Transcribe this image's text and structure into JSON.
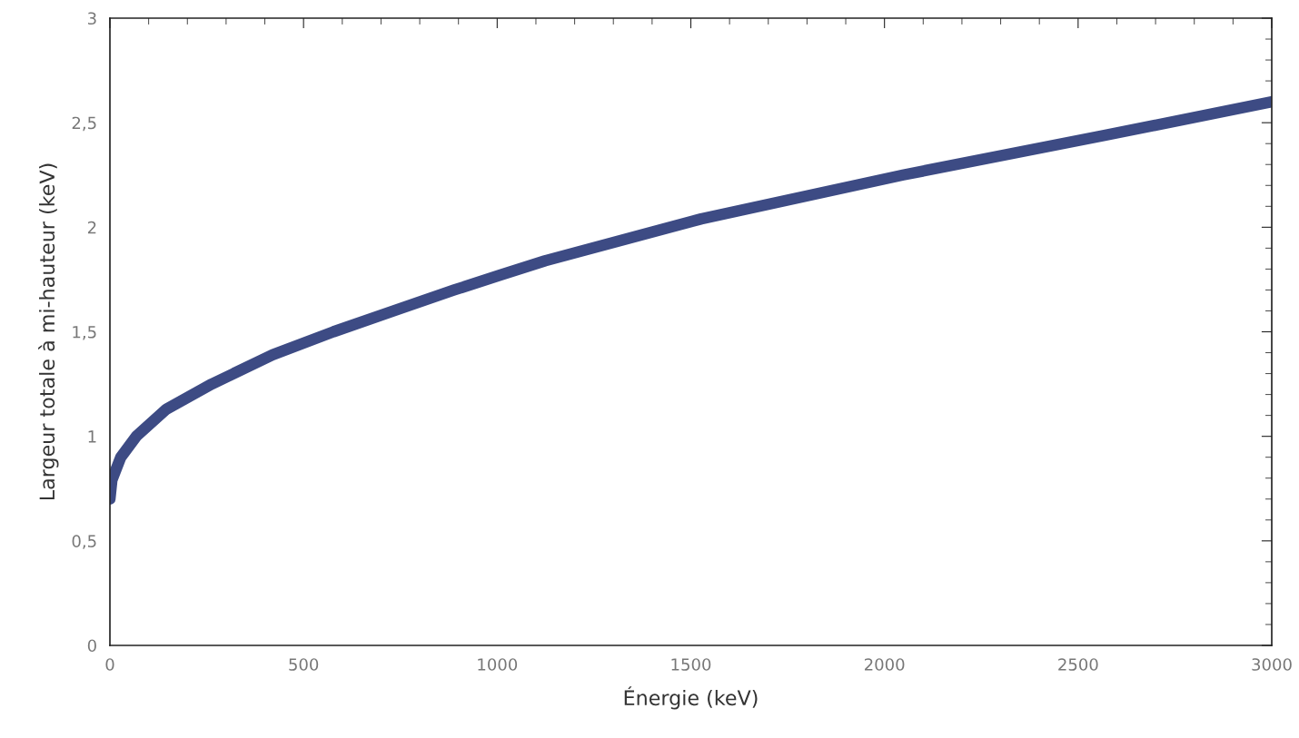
{
  "chart_data": {
    "type": "line",
    "xlabel": "Énergie (keV)",
    "ylabel": "Largeur totale à mi-hauteur (keV)",
    "x": [
      0,
      5,
      28,
      68,
      146,
      263,
      420,
      577,
      733,
      889,
      1006,
      1124,
      1527,
      2048,
      2571,
      3000
    ],
    "series": [
      {
        "color": "#3d4b84",
        "values": [
          0.7,
          0.79,
          0.9,
          1.0,
          1.13,
          1.25,
          1.39,
          1.5,
          1.6,
          1.7,
          1.77,
          1.84,
          2.04,
          2.25,
          2.44,
          2.6
        ]
      }
    ],
    "xlim": [
      0,
      3000
    ],
    "xticks": [
      0,
      {
        "value": 100,
        "label": null
      },
      {
        "value": 200,
        "label": null
      },
      {
        "value": 300,
        "label": null
      },
      {
        "value": 400,
        "label": null
      },
      500,
      {
        "value": 600,
        "label": null
      },
      {
        "value": 700,
        "label": null
      },
      {
        "value": 800,
        "label": null
      },
      {
        "value": 900,
        "label": null
      },
      1000,
      {
        "value": 1100,
        "label": null
      },
      {
        "value": 1200,
        "label": null
      },
      {
        "value": 1300,
        "label": null
      },
      {
        "value": 1400,
        "label": null
      },
      1500,
      {
        "value": 1600,
        "label": null
      },
      {
        "value": 1700,
        "label": null
      },
      {
        "value": 1800,
        "label": null
      },
      {
        "value": 1900,
        "label": null
      },
      2000,
      {
        "value": 2100,
        "label": null
      },
      {
        "value": 2200,
        "label": null
      },
      {
        "value": 2300,
        "label": null
      },
      {
        "value": 2400,
        "label": null
      },
      2500,
      {
        "value": 2600,
        "label": null
      },
      {
        "value": 2700,
        "label": null
      },
      {
        "value": 2800,
        "label": null
      },
      {
        "value": 2900,
        "label": null
      },
      3000
    ],
    "ylim": [
      0,
      3
    ],
    "yticks": [
      0,
      {
        "value": 0.1,
        "label": null
      },
      {
        "value": 0.2,
        "label": null
      },
      {
        "value": 0.3,
        "label": null
      },
      {
        "value": 0.4,
        "label": null
      },
      {
        "value": 0.5,
        "label": "0,5"
      },
      {
        "value": 0.6,
        "label": null
      },
      {
        "value": 0.7,
        "label": null
      },
      {
        "value": 0.8,
        "label": null
      },
      {
        "value": 0.9,
        "label": null
      },
      1,
      {
        "value": 1.1,
        "label": null
      },
      {
        "value": 1.2,
        "label": null
      },
      {
        "value": 1.3,
        "label": null
      },
      {
        "value": 1.4,
        "label": null
      },
      {
        "value": 1.5,
        "label": "1,5"
      },
      {
        "value": 1.6,
        "label": null
      },
      {
        "value": 1.7,
        "label": null
      },
      {
        "value": 1.8,
        "label": null
      },
      {
        "value": 1.9,
        "label": null
      },
      2,
      {
        "value": 2.1,
        "label": null
      },
      {
        "value": 2.2,
        "label": null
      },
      {
        "value": 2.3,
        "label": null
      },
      {
        "value": 2.4,
        "label": null
      },
      {
        "value": 2.5,
        "label": "2,5"
      },
      {
        "value": 2.6,
        "label": null
      },
      {
        "value": 2.7,
        "label": null
      },
      {
        "value": 2.8,
        "label": null
      },
      {
        "value": 2.9,
        "label": null
      },
      3
    ],
    "grid": false,
    "marker": "none",
    "line_style": "solid"
  }
}
